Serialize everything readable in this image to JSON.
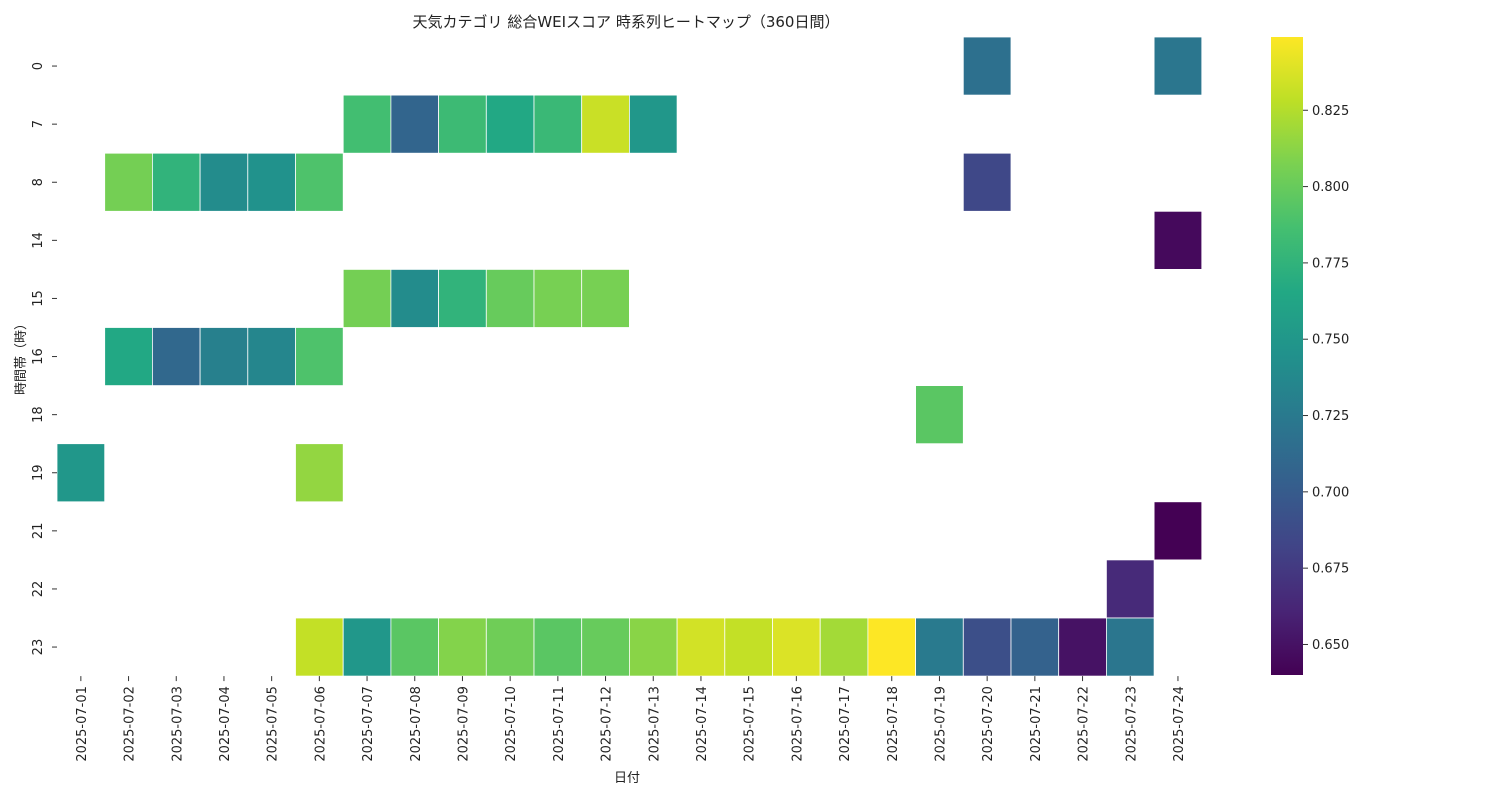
{
  "chart_data": {
    "type": "heatmap",
    "title": "天気カテゴリ 総合WEIスコア 時系列ヒートマップ（360日間）",
    "xlabel": "日付",
    "ylabel": "時間帯（時）",
    "colormap": "viridis",
    "grid": false,
    "x": [
      "2025-07-01",
      "2025-07-02",
      "2025-07-03",
      "2025-07-04",
      "2025-07-05",
      "2025-07-06",
      "2025-07-07",
      "2025-07-08",
      "2025-07-09",
      "2025-07-10",
      "2025-07-11",
      "2025-07-12",
      "2025-07-13",
      "2025-07-14",
      "2025-07-15",
      "2025-07-16",
      "2025-07-17",
      "2025-07-18",
      "2025-07-19",
      "2025-07-20",
      "2025-07-21",
      "2025-07-22",
      "2025-07-23",
      "2025-07-24"
    ],
    "y": [
      "0",
      "7",
      "8",
      "14",
      "15",
      "16",
      "18",
      "19",
      "21",
      "22",
      "23"
    ],
    "colorbar": {
      "range": [
        0.64,
        0.849
      ],
      "ticks": [
        0.65,
        0.675,
        0.7,
        0.725,
        0.75,
        0.775,
        0.8,
        0.825
      ],
      "tick_labels": [
        "0.650",
        "0.675",
        "0.700",
        "0.725",
        "0.750",
        "0.775",
        "0.800",
        "0.825"
      ]
    },
    "cells": [
      {
        "x": "2025-07-20",
        "y": "0",
        "value": 0.717
      },
      {
        "x": "2025-07-24",
        "y": "0",
        "value": 0.722
      },
      {
        "x": "2025-07-07",
        "y": "7",
        "value": 0.785
      },
      {
        "x": "2025-07-08",
        "y": "7",
        "value": 0.708
      },
      {
        "x": "2025-07-09",
        "y": "7",
        "value": 0.782
      },
      {
        "x": "2025-07-10",
        "y": "7",
        "value": 0.765
      },
      {
        "x": "2025-07-11",
        "y": "7",
        "value": 0.78
      },
      {
        "x": "2025-07-12",
        "y": "7",
        "value": 0.832
      },
      {
        "x": "2025-07-13",
        "y": "7",
        "value": 0.75
      },
      {
        "x": "2025-07-02",
        "y": "8",
        "value": 0.805
      },
      {
        "x": "2025-07-03",
        "y": "8",
        "value": 0.775
      },
      {
        "x": "2025-07-04",
        "y": "8",
        "value": 0.74
      },
      {
        "x": "2025-07-05",
        "y": "8",
        "value": 0.745
      },
      {
        "x": "2025-07-06",
        "y": "8",
        "value": 0.79
      },
      {
        "x": "2025-07-20",
        "y": "8",
        "value": 0.685
      },
      {
        "x": "2025-07-24",
        "y": "14",
        "value": 0.645
      },
      {
        "x": "2025-07-07",
        "y": "15",
        "value": 0.805
      },
      {
        "x": "2025-07-08",
        "y": "15",
        "value": 0.74
      },
      {
        "x": "2025-07-09",
        "y": "15",
        "value": 0.775
      },
      {
        "x": "2025-07-10",
        "y": "15",
        "value": 0.8
      },
      {
        "x": "2025-07-11",
        "y": "15",
        "value": 0.806
      },
      {
        "x": "2025-07-12",
        "y": "15",
        "value": 0.806
      },
      {
        "x": "2025-07-02",
        "y": "16",
        "value": 0.765
      },
      {
        "x": "2025-07-03",
        "y": "16",
        "value": 0.71
      },
      {
        "x": "2025-07-04",
        "y": "16",
        "value": 0.73
      },
      {
        "x": "2025-07-05",
        "y": "16",
        "value": 0.735
      },
      {
        "x": "2025-07-06",
        "y": "16",
        "value": 0.79
      },
      {
        "x": "2025-07-19",
        "y": "18",
        "value": 0.795
      },
      {
        "x": "2025-07-01",
        "y": "19",
        "value": 0.75
      },
      {
        "x": "2025-07-06",
        "y": "19",
        "value": 0.815
      },
      {
        "x": "2025-07-24",
        "y": "21",
        "value": 0.64
      },
      {
        "x": "2025-07-23",
        "y": "22",
        "value": 0.665
      },
      {
        "x": "2025-07-06",
        "y": "23",
        "value": 0.83
      },
      {
        "x": "2025-07-07",
        "y": "23",
        "value": 0.75
      },
      {
        "x": "2025-07-08",
        "y": "23",
        "value": 0.795
      },
      {
        "x": "2025-07-09",
        "y": "23",
        "value": 0.81
      },
      {
        "x": "2025-07-10",
        "y": "23",
        "value": 0.803
      },
      {
        "x": "2025-07-11",
        "y": "23",
        "value": 0.795
      },
      {
        "x": "2025-07-12",
        "y": "23",
        "value": 0.8
      },
      {
        "x": "2025-07-13",
        "y": "23",
        "value": 0.812
      },
      {
        "x": "2025-07-14",
        "y": "23",
        "value": 0.835
      },
      {
        "x": "2025-07-15",
        "y": "23",
        "value": 0.83
      },
      {
        "x": "2025-07-16",
        "y": "23",
        "value": 0.838
      },
      {
        "x": "2025-07-17",
        "y": "23",
        "value": 0.82
      },
      {
        "x": "2025-07-18",
        "y": "23",
        "value": 0.849
      },
      {
        "x": "2025-07-19",
        "y": "23",
        "value": 0.725
      },
      {
        "x": "2025-07-20",
        "y": "23",
        "value": 0.69
      },
      {
        "x": "2025-07-21",
        "y": "23",
        "value": 0.705
      },
      {
        "x": "2025-07-22",
        "y": "23",
        "value": 0.65
      },
      {
        "x": "2025-07-23",
        "y": "23",
        "value": 0.722
      }
    ]
  }
}
